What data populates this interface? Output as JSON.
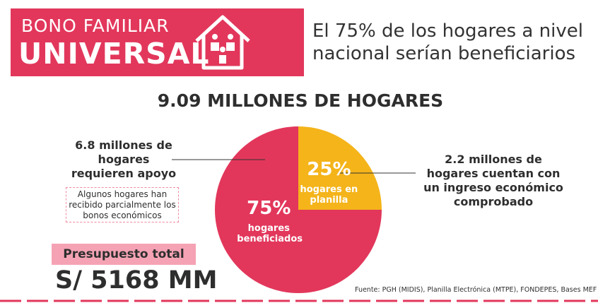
{
  "header": {
    "line1": "BONO FAMILIAR",
    "line2": "UNIVERSAL"
  },
  "headline": "El 75% de los hogares a nivel nacional serían beneficiarios",
  "chart_data": {
    "type": "pie",
    "title": "9.09 MILLONES DE HOGARES",
    "categories": [
      "hogares beneficiados",
      "hogares en planilla"
    ],
    "values": [
      75,
      25
    ],
    "value_labels": [
      "75%",
      "25%"
    ],
    "colors": [
      "#e2375b",
      "#f4b41a"
    ]
  },
  "annotations": [
    "6.8 millones de hogares requieren apoyo",
    "Algunos hogares han recibido parcialmente los bonos económicos",
    "2.2 millones de hogares cuentan con un ingreso económico comprobado"
  ],
  "budget": {
    "label": "Presupuesto total",
    "amount": "S/ 5168 MM"
  },
  "source": "Fuente: PGH (MIDIS), Planilla Electrónica (MTPE), FONDEPES, Bases MEF"
}
